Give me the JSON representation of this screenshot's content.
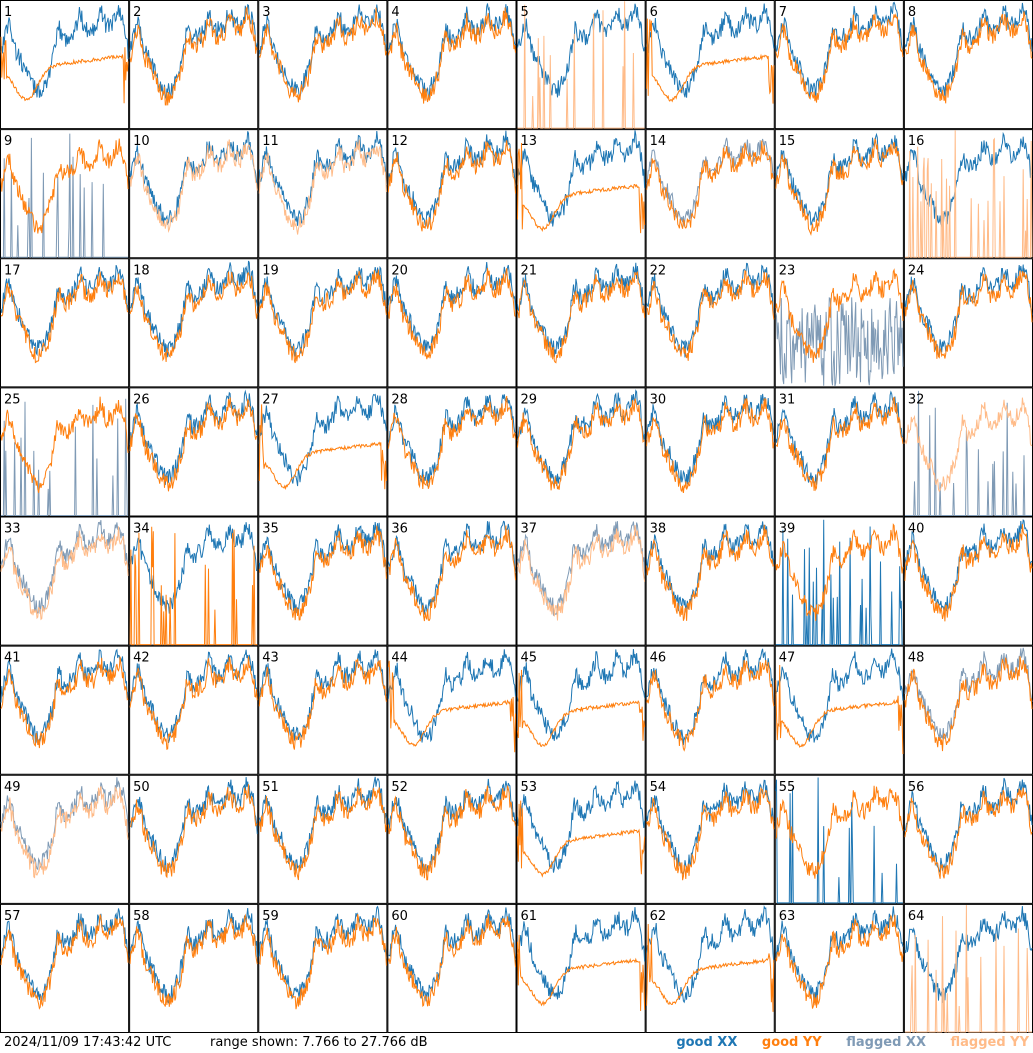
{
  "chart_data": {
    "type": "line",
    "grid": {
      "rows": 8,
      "cols": 8
    },
    "panels": [
      {
        "label": "1",
        "xx": "good",
        "yy": "good",
        "yy_style": "smooth"
      },
      {
        "label": "2",
        "xx": "good",
        "yy": "good",
        "yy_style": "normal"
      },
      {
        "label": "3",
        "xx": "good",
        "yy": "good",
        "yy_style": "normal"
      },
      {
        "label": "4",
        "xx": "good",
        "yy": "good",
        "yy_style": "normal"
      },
      {
        "label": "5",
        "xx": "good",
        "yy": "flagged",
        "yy_style": "spiky"
      },
      {
        "label": "6",
        "xx": "good",
        "yy": "good",
        "yy_style": "smooth"
      },
      {
        "label": "7",
        "xx": "good",
        "yy": "good",
        "yy_style": "normal"
      },
      {
        "label": "8",
        "xx": "good",
        "yy": "good",
        "yy_style": "normal"
      },
      {
        "label": "9",
        "xx": "flagged",
        "yy": "good",
        "xx_style": "spiky"
      },
      {
        "label": "10",
        "xx": "good",
        "yy": "flagged",
        "yy_style": "normal"
      },
      {
        "label": "11",
        "xx": "good",
        "yy": "flagged",
        "yy_style": "normal"
      },
      {
        "label": "12",
        "xx": "good",
        "yy": "good",
        "yy_style": "normal"
      },
      {
        "label": "13",
        "xx": "good",
        "yy": "good",
        "yy_style": "smooth"
      },
      {
        "label": "14",
        "xx": "flagged",
        "yy": "good",
        "yy_style": "normal"
      },
      {
        "label": "15",
        "xx": "good",
        "yy": "good",
        "yy_style": "normal"
      },
      {
        "label": "16",
        "xx": "good",
        "yy": "flagged",
        "yy_style": "spiky"
      },
      {
        "label": "17",
        "xx": "good",
        "yy": "good",
        "yy_style": "normal"
      },
      {
        "label": "18",
        "xx": "good",
        "yy": "good",
        "yy_style": "normal"
      },
      {
        "label": "19",
        "xx": "good",
        "yy": "good",
        "yy_style": "normal"
      },
      {
        "label": "20",
        "xx": "good",
        "yy": "good",
        "yy_style": "normal"
      },
      {
        "label": "21",
        "xx": "good",
        "yy": "good",
        "yy_style": "normal"
      },
      {
        "label": "22",
        "xx": "good",
        "yy": "good",
        "yy_style": "normal"
      },
      {
        "label": "23",
        "xx": "flagged",
        "yy": "good",
        "xx_style": "noisy"
      },
      {
        "label": "24",
        "xx": "good",
        "yy": "good",
        "yy_style": "normal"
      },
      {
        "label": "25",
        "xx": "flagged",
        "yy": "good",
        "xx_style": "spiky"
      },
      {
        "label": "26",
        "xx": "good",
        "yy": "good",
        "yy_style": "normal"
      },
      {
        "label": "27",
        "xx": "good",
        "yy": "good",
        "yy_style": "smooth"
      },
      {
        "label": "28",
        "xx": "good",
        "yy": "good",
        "yy_style": "normal"
      },
      {
        "label": "29",
        "xx": "good",
        "yy": "good",
        "yy_style": "normal"
      },
      {
        "label": "30",
        "xx": "good",
        "yy": "good",
        "yy_style": "normal"
      },
      {
        "label": "31",
        "xx": "good",
        "yy": "good",
        "yy_style": "normal"
      },
      {
        "label": "32",
        "xx": "flagged",
        "yy": "flagged",
        "xx_style": "spiky"
      },
      {
        "label": "33",
        "xx": "flagged",
        "yy": "flagged",
        "yy_style": "normal"
      },
      {
        "label": "34",
        "xx": "good",
        "yy": "good",
        "yy_style": "spiky"
      },
      {
        "label": "35",
        "xx": "good",
        "yy": "good",
        "yy_style": "normal"
      },
      {
        "label": "36",
        "xx": "good",
        "yy": "good",
        "yy_style": "normal"
      },
      {
        "label": "37",
        "xx": "flagged",
        "yy": "flagged",
        "yy_style": "normal"
      },
      {
        "label": "38",
        "xx": "good",
        "yy": "good",
        "yy_style": "normal"
      },
      {
        "label": "39",
        "xx": "good",
        "yy": "good",
        "xx_style": "spiky"
      },
      {
        "label": "40",
        "xx": "good",
        "yy": "good",
        "yy_style": "normal"
      },
      {
        "label": "41",
        "xx": "good",
        "yy": "good",
        "yy_style": "normal"
      },
      {
        "label": "42",
        "xx": "good",
        "yy": "good",
        "yy_style": "normal"
      },
      {
        "label": "43",
        "xx": "good",
        "yy": "good",
        "yy_style": "normal"
      },
      {
        "label": "44",
        "xx": "good",
        "yy": "good",
        "yy_style": "smooth"
      },
      {
        "label": "45",
        "xx": "good",
        "yy": "good",
        "yy_style": "smooth"
      },
      {
        "label": "46",
        "xx": "good",
        "yy": "good",
        "yy_style": "normal"
      },
      {
        "label": "47",
        "xx": "good",
        "yy": "good",
        "yy_style": "smooth"
      },
      {
        "label": "48",
        "xx": "flagged",
        "yy": "good",
        "yy_style": "normal"
      },
      {
        "label": "49",
        "xx": "flagged",
        "yy": "flagged",
        "yy_style": "normal"
      },
      {
        "label": "50",
        "xx": "good",
        "yy": "good",
        "yy_style": "normal"
      },
      {
        "label": "51",
        "xx": "good",
        "yy": "good",
        "yy_style": "normal"
      },
      {
        "label": "52",
        "xx": "good",
        "yy": "good",
        "yy_style": "normal"
      },
      {
        "label": "53",
        "xx": "good",
        "yy": "good",
        "yy_style": "smooth"
      },
      {
        "label": "54",
        "xx": "good",
        "yy": "good",
        "yy_style": "normal"
      },
      {
        "label": "55",
        "xx": "good",
        "yy": "good",
        "xx_style": "spiky"
      },
      {
        "label": "56",
        "xx": "good",
        "yy": "good",
        "yy_style": "normal"
      },
      {
        "label": "57",
        "xx": "good",
        "yy": "good",
        "yy_style": "normal"
      },
      {
        "label": "58",
        "xx": "good",
        "yy": "good",
        "yy_style": "normal"
      },
      {
        "label": "59",
        "xx": "good",
        "yy": "good",
        "yy_style": "normal"
      },
      {
        "label": "60",
        "xx": "good",
        "yy": "good",
        "yy_style": "normal"
      },
      {
        "label": "61",
        "xx": "good",
        "yy": "good",
        "yy_style": "smooth"
      },
      {
        "label": "62",
        "xx": "good",
        "yy": "good",
        "yy_style": "smooth"
      },
      {
        "label": "63",
        "xx": "good",
        "yy": "good",
        "yy_style": "normal"
      },
      {
        "label": "64",
        "xx": "good",
        "yy": "flagged",
        "yy_style": "spiky"
      }
    ],
    "y_range_db": [
      7.766,
      27.766
    ],
    "legend": {
      "placement": "bottom-right",
      "entries": [
        {
          "name": "good XX",
          "color": "#1f77b4"
        },
        {
          "name": "good YY",
          "color": "#ff7f0e"
        },
        {
          "name": "flagged XX",
          "color": "#7f9ab5"
        },
        {
          "name": "flagged YY",
          "color": "#ffbb88"
        }
      ]
    }
  },
  "footer": {
    "timestamp": "2024/11/09 17:43:42 UTC",
    "range_text": "range shown: 7.766 to 27.766 dB"
  }
}
